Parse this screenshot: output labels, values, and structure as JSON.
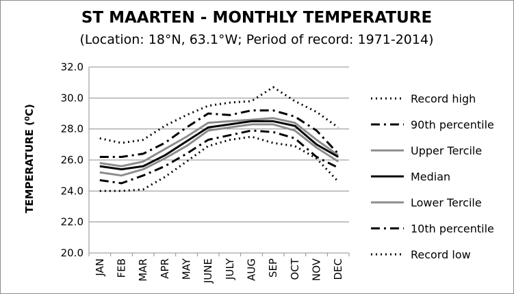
{
  "chart_data": {
    "type": "line",
    "title": "ST MAARTEN - MONTHLY TEMPERATURE",
    "subtitle": "(Location: 18°N, 63.1°W; Period of record: 1971-2014)",
    "ylabel_main": "TEMPERATURE (",
    "ylabel_sup": "0",
    "ylabel_end": "C)",
    "xlabel": "",
    "categories": [
      "JAN",
      "FEB",
      "MAR",
      "APR",
      "MAY",
      "JUNE",
      "JULY",
      "AUG",
      "SEP",
      "OCT",
      "NOV",
      "DEC"
    ],
    "ylim": [
      20,
      32
    ],
    "yticks": [
      "20.0",
      "22.0",
      "24.0",
      "26.0",
      "28.0",
      "30.0",
      "32.0"
    ],
    "grid": true,
    "legend_position": "right",
    "series": [
      {
        "name": "Record high",
        "style": "dotted",
        "color": "#000000",
        "values": [
          27.4,
          27.1,
          27.3,
          28.2,
          28.9,
          29.5,
          29.7,
          29.8,
          30.7,
          29.8,
          29.1,
          28.1
        ]
      },
      {
        "name": "90th percentile",
        "style": "dashdot",
        "color": "#000000",
        "values": [
          26.2,
          26.2,
          26.4,
          27.1,
          28.1,
          29.0,
          28.9,
          29.2,
          29.2,
          28.8,
          27.9,
          26.4
        ]
      },
      {
        "name": "Upper Tercile",
        "style": "solid",
        "color": "#8c8c8c",
        "values": [
          25.8,
          25.6,
          25.9,
          26.7,
          27.5,
          28.4,
          28.5,
          28.6,
          28.7,
          28.4,
          27.3,
          26.3
        ]
      },
      {
        "name": "Median",
        "style": "solid",
        "color": "#000000",
        "values": [
          25.6,
          25.4,
          25.6,
          26.3,
          27.2,
          28.1,
          28.3,
          28.5,
          28.5,
          28.2,
          27.0,
          26.2
        ]
      },
      {
        "name": "Lower Tercile",
        "style": "solid",
        "color": "#8c8c8c",
        "values": [
          25.2,
          25.0,
          25.4,
          26.1,
          26.9,
          27.9,
          28.1,
          28.3,
          28.3,
          27.9,
          26.8,
          25.9
        ]
      },
      {
        "name": "10th percentile",
        "style": "dashdot",
        "color": "#000000",
        "values": [
          24.7,
          24.5,
          25.0,
          25.6,
          26.4,
          27.3,
          27.6,
          27.9,
          27.8,
          27.4,
          26.2,
          25.5
        ]
      },
      {
        "name": "Record low",
        "style": "dotted",
        "color": "#000000",
        "values": [
          24.0,
          24.0,
          24.1,
          24.9,
          25.9,
          26.9,
          27.3,
          27.5,
          27.1,
          26.9,
          26.1,
          24.6
        ]
      }
    ]
  }
}
